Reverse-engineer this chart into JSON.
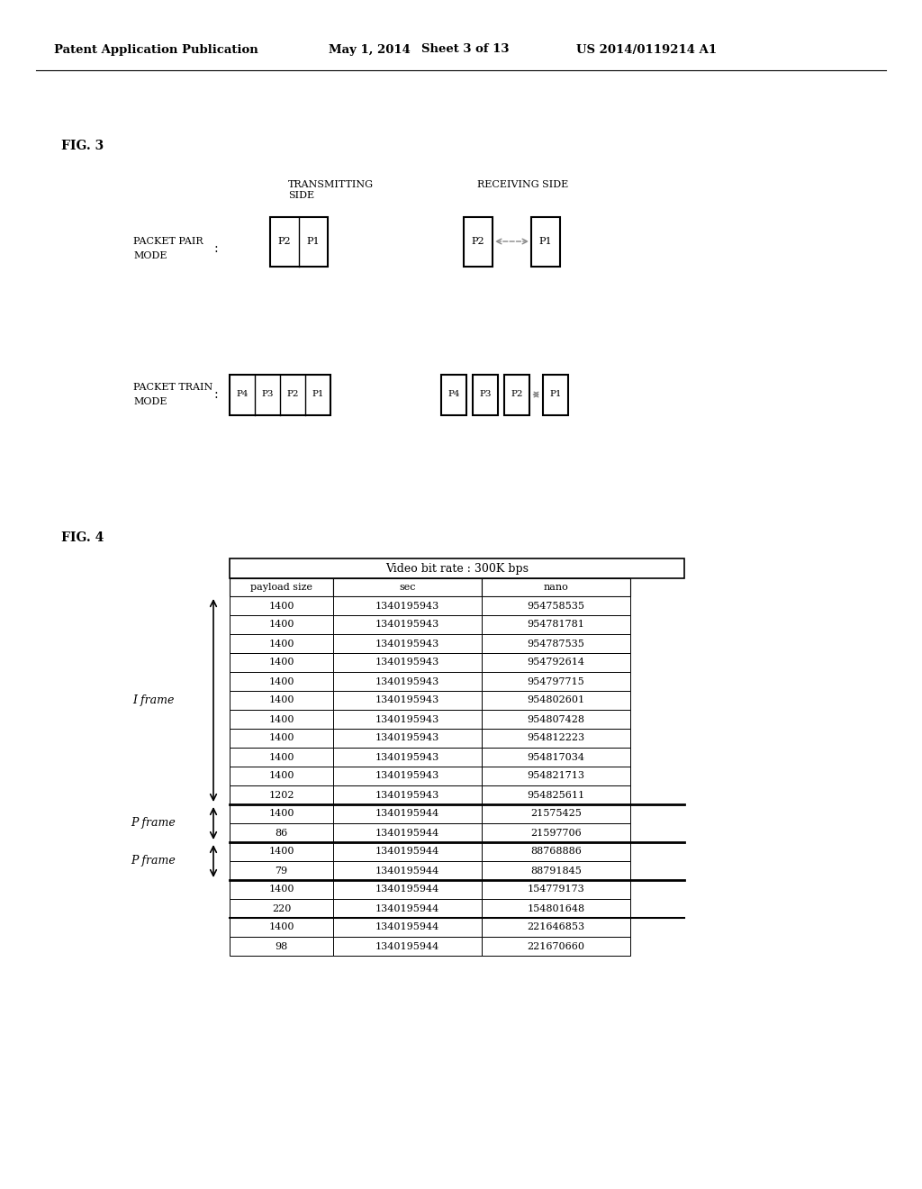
{
  "header_line1": "Patent Application Publication",
  "header_date": "May 1, 2014",
  "header_sheet": "Sheet 3 of 13",
  "header_patent": "US 2014/0119214 A1",
  "fig3_label": "FIG. 3",
  "fig4_label": "FIG. 4",
  "table_title": "Video bit rate : 300K bps",
  "col_headers": [
    "payload size",
    "sec",
    "nano"
  ],
  "table_data": [
    [
      "1400",
      "1340195943",
      "954758535"
    ],
    [
      "1400",
      "1340195943",
      "954781781"
    ],
    [
      "1400",
      "1340195943",
      "954787535"
    ],
    [
      "1400",
      "1340195943",
      "954792614"
    ],
    [
      "1400",
      "1340195943",
      "954797715"
    ],
    [
      "1400",
      "1340195943",
      "954802601"
    ],
    [
      "1400",
      "1340195943",
      "954807428"
    ],
    [
      "1400",
      "1340195943",
      "954812223"
    ],
    [
      "1400",
      "1340195943",
      "954817034"
    ],
    [
      "1400",
      "1340195943",
      "954821713"
    ],
    [
      "1202",
      "1340195943",
      "954825611"
    ],
    [
      "1400",
      "1340195944",
      "21575425"
    ],
    [
      "86",
      "1340195944",
      "21597706"
    ],
    [
      "1400",
      "1340195944",
      "88768886"
    ],
    [
      "79",
      "1340195944",
      "88791845"
    ],
    [
      "1400",
      "1340195944",
      "154779173"
    ],
    [
      "220",
      "1340195944",
      "154801648"
    ],
    [
      "1400",
      "1340195944",
      "221646853"
    ],
    [
      "98",
      "1340195944",
      "221670660"
    ]
  ],
  "bg_color": "#ffffff",
  "text_color": "#000000"
}
